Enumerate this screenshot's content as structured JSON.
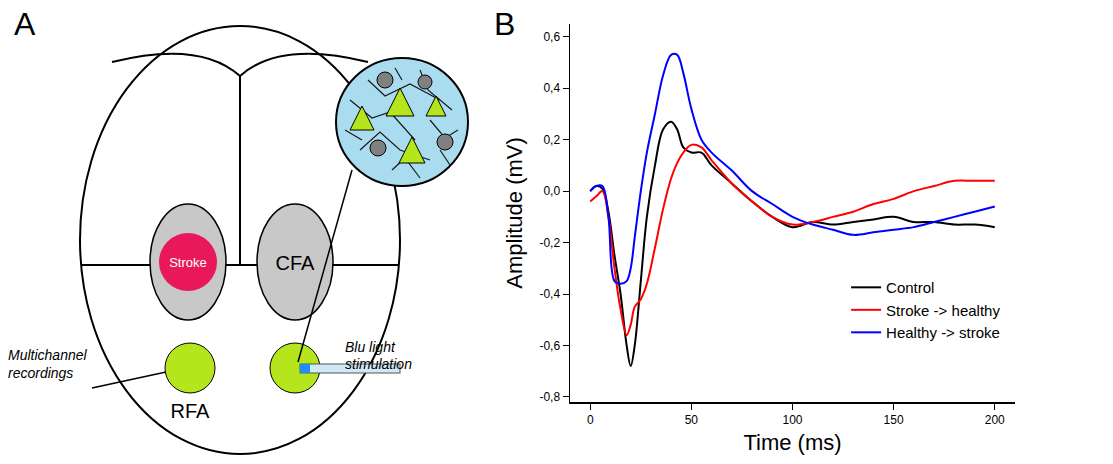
{
  "panel_letters": [
    "A",
    "B"
  ],
  "diagram": {
    "stroke": "Stroke",
    "cfa": "CFA",
    "rfa": "RFA",
    "recording": "Multichannel recordings",
    "stimulation": "Blu light stimulation"
  },
  "chart_data": {
    "type": "line",
    "x_label": "Time (ms)",
    "y_label": "Amplitude (mV)",
    "x": [
      0,
      3,
      6,
      9,
      12,
      15,
      18,
      20,
      22,
      25,
      28,
      32,
      36,
      40,
      43,
      46,
      50,
      55,
      60,
      70,
      80,
      90,
      100,
      110,
      120,
      130,
      140,
      150,
      160,
      170,
      180,
      190,
      200
    ],
    "series": [
      {
        "name": "Control",
        "color": "#000000",
        "values": [
          0,
          0.02,
          0.01,
          -0.08,
          -0.25,
          -0.4,
          -0.6,
          -0.68,
          -0.6,
          -0.35,
          -0.1,
          0.1,
          0.24,
          0.27,
          0.24,
          0.17,
          0.15,
          0.15,
          0.1,
          0.03,
          -0.04,
          -0.1,
          -0.14,
          -0.12,
          -0.13,
          -0.12,
          -0.11,
          -0.1,
          -0.12,
          -0.12,
          -0.13,
          -0.13,
          -0.14
        ]
      },
      {
        "name": "Stroke -> healthy",
        "color": "#ff0000",
        "values": [
          -0.04,
          -0.02,
          0,
          -0.1,
          -0.3,
          -0.46,
          -0.56,
          -0.52,
          -0.45,
          -0.42,
          -0.36,
          -0.22,
          -0.07,
          0.05,
          0.11,
          0.15,
          0.18,
          0.17,
          0.12,
          0.03,
          -0.04,
          -0.1,
          -0.13,
          -0.12,
          -0.1,
          -0.08,
          -0.05,
          -0.03,
          0,
          0.02,
          0.04,
          0.04,
          0.04
        ]
      },
      {
        "name": "Healthy -> stroke",
        "color": "#0000ff",
        "values": [
          0,
          0.02,
          0.02,
          -0.1,
          -0.35,
          -0.36,
          -0.35,
          -0.3,
          -0.18,
          0,
          0.15,
          0.3,
          0.45,
          0.53,
          0.53,
          0.46,
          0.32,
          0.2,
          0.15,
          0.08,
          0,
          -0.05,
          -0.1,
          -0.13,
          -0.15,
          -0.17,
          -0.16,
          -0.15,
          -0.14,
          -0.12,
          -0.1,
          -0.08,
          -0.06
        ]
      }
    ],
    "xlim": [
      -10,
      210
    ],
    "xticks": [
      0,
      50,
      100,
      150,
      200
    ],
    "ylim": [
      -0.82,
      0.65
    ],
    "yticks": [
      {
        "value": -0.8,
        "label": "-0,8"
      },
      {
        "value": -0.6,
        "label": "-0,6"
      },
      {
        "value": -0.4,
        "label": "-0,4"
      },
      {
        "value": -0.2,
        "label": "-0,2"
      },
      {
        "value": 0,
        "label": "0,0"
      },
      {
        "value": 0.2,
        "label": "0,2"
      },
      {
        "value": 0.4,
        "label": "0,4"
      },
      {
        "value": 0.6,
        "label": "0,6"
      }
    ],
    "legend": "lower right",
    "grid": false
  }
}
